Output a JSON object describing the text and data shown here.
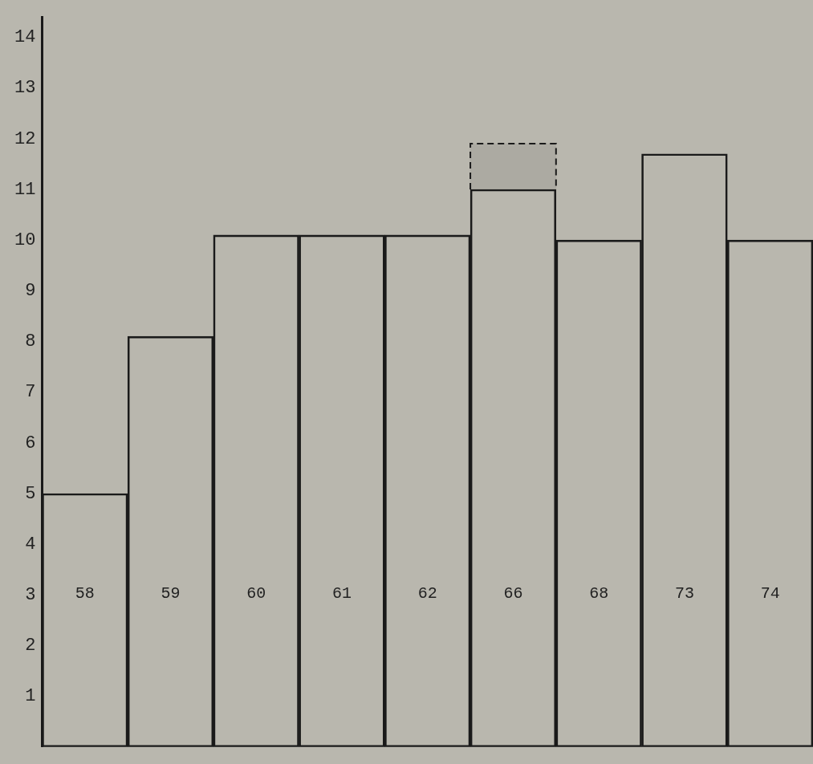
{
  "chart_data": {
    "type": "bar",
    "stacked": true,
    "categories": [
      "58",
      "59",
      "60",
      "61",
      "62",
      "66",
      "68",
      "73",
      "74"
    ],
    "series": [
      {
        "color": "#1a1a1a",
        "values": [
          5.0,
          8.1,
          10.1,
          10.1,
          10.1,
          11.0,
          10.0,
          11.7,
          10.0
        ]
      },
      {
        "color": "#1a1a1a",
        "line_style": "dashed",
        "values": [
          null,
          null,
          null,
          null,
          null,
          0.9,
          null,
          null,
          null
        ]
      }
    ],
    "ylim": [
      0,
      14.4
    ],
    "yticks": [
      1,
      2,
      3,
      4,
      5,
      6,
      7,
      8,
      9,
      10,
      11,
      12,
      13,
      14
    ],
    "grid": false,
    "legend": false,
    "tick_labels": "y"
  }
}
